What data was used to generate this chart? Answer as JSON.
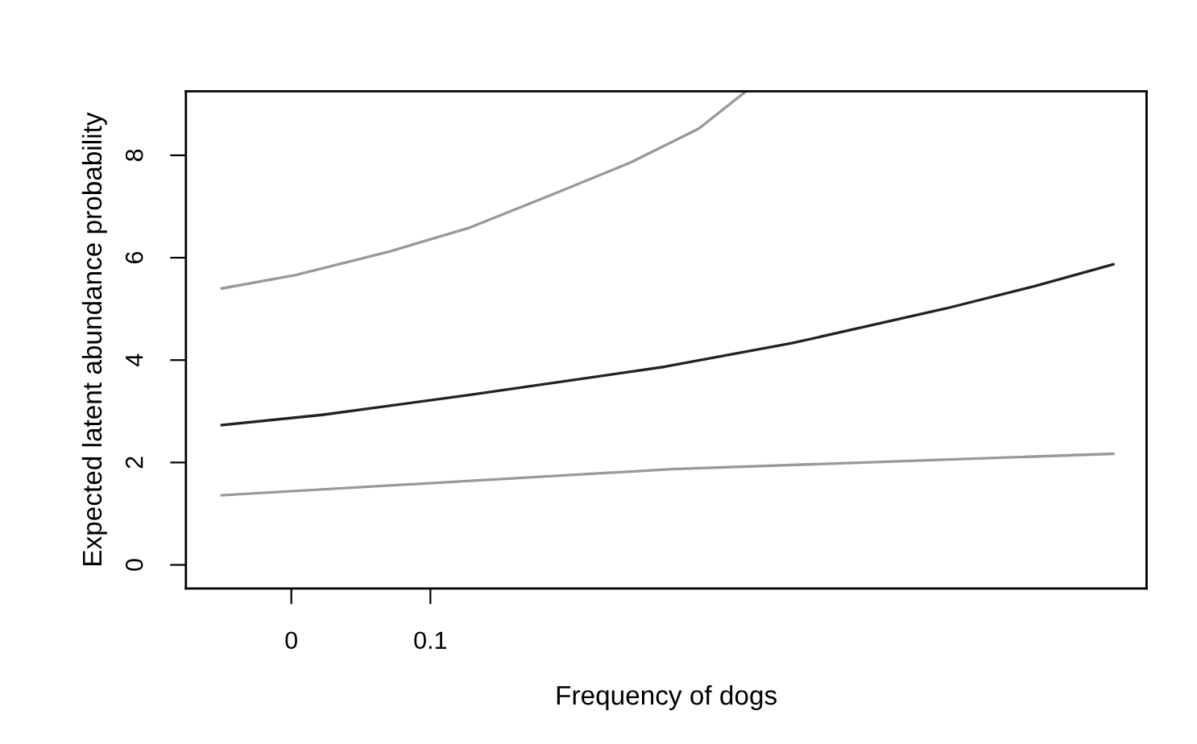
{
  "chart_data": {
    "type": "line",
    "xlabel": "Frequency of dogs",
    "ylabel": "Expected latent abundance probability",
    "xlim": [
      -0.0758,
      0.615
    ],
    "ylim": [
      -0.46,
      9.25
    ],
    "xticks": [
      0,
      0.1
    ],
    "yticks": [
      0,
      2,
      4,
      6,
      8
    ],
    "grid": false,
    "legend": false,
    "marker": "none",
    "line_style": "solid",
    "series": [
      {
        "color": "#999999",
        "x": [
          -0.05,
          0.003,
          0.0706,
          0.1285,
          0.191,
          0.244,
          0.293,
          0.326
        ],
        "values": [
          5.4,
          5.66,
          6.12,
          6.59,
          7.27,
          7.86,
          8.52,
          9.23
        ]
      },
      {
        "color": "#222222",
        "x": [
          -0.05,
          0.022,
          0.1285,
          0.2685,
          0.36,
          0.471,
          0.534,
          0.591
        ],
        "values": [
          2.73,
          2.93,
          3.32,
          3.87,
          4.33,
          5.01,
          5.44,
          5.87
        ]
      },
      {
        "color": "#999999",
        "x": [
          -0.05,
          0.2735,
          0.591
        ],
        "values": [
          1.36,
          1.87,
          2.17
        ]
      }
    ]
  }
}
